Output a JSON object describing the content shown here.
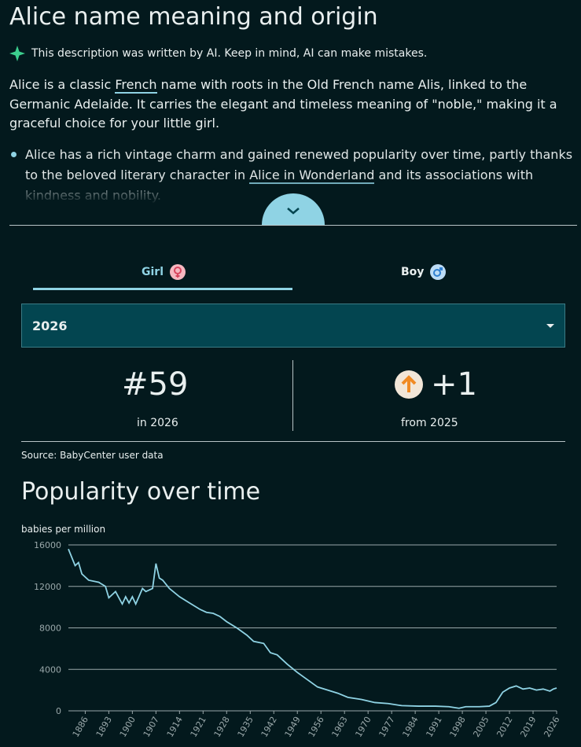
{
  "header": {
    "title": "Alice name meaning and origin",
    "ai_note": "This description was written by AI. Keep in mind, AI can make mistakes."
  },
  "description": {
    "parts": [
      "Alice is a classic ",
      "French",
      " name with roots in the Old French name Alis, linked to the Germanic Adelaide. It carries the elegant and timeless meaning of \"noble,\" making it a graceful choice for your little girl."
    ]
  },
  "bullets": [
    {
      "parts": [
        "Alice has a rich vintage charm and gained renewed popularity over time, partly thanks to the beloved literary character in ",
        "Alice in Wonderland",
        " and its associations with kindness and nobility."
      ]
    }
  ],
  "tabs": [
    "Girl",
    "Boy"
  ],
  "select": {
    "value": "2026"
  },
  "stats": {
    "rank": "#59",
    "rank_label": "in 2026",
    "change": "+1",
    "change_label": "from 2025"
  },
  "source": "Source: BabyCenter user data",
  "section_title": "Popularity over time",
  "chart_data": {
    "type": "line",
    "ylabel": "babies per million",
    "color": "#8fd3e4",
    "x": [
      1881,
      1883,
      1884,
      1885,
      1887,
      1890,
      1892,
      1893,
      1895,
      1897,
      1898,
      1899,
      1900,
      1901,
      1903,
      1904,
      1906,
      1907,
      1908,
      1909,
      1911,
      1914,
      1917,
      1920,
      1922,
      1924,
      1926,
      1928,
      1931,
      1934,
      1936,
      1939,
      1941,
      1943,
      1946,
      1949,
      1952,
      1955,
      1958,
      1961,
      1964,
      1968,
      1972,
      1976,
      1980,
      1985,
      1990,
      1994,
      1997,
      1999,
      2003,
      2006,
      2008,
      2010,
      2012,
      2014,
      2016,
      2018,
      2020,
      2022,
      2024,
      2025,
      2026
    ],
    "series": [
      {
        "name": "Girl",
        "values": [
          15600,
          14000,
          14300,
          13200,
          12600,
          12400,
          12000,
          10900,
          11500,
          10300,
          11000,
          10400,
          11000,
          10300,
          11800,
          11500,
          11800,
          14200,
          12800,
          12600,
          11800,
          11000,
          10400,
          9800,
          9500,
          9400,
          9100,
          8600,
          8000,
          7300,
          6700,
          6500,
          5600,
          5400,
          4500,
          3700,
          3000,
          2300,
          2000,
          1700,
          1300,
          1100,
          800,
          700,
          500,
          450,
          450,
          400,
          250,
          400,
          400,
          450,
          800,
          1800,
          2200,
          2400,
          2100,
          2200,
          2000,
          2100,
          1900,
          2100,
          2200
        ]
      }
    ],
    "xlim": [
      1881,
      2026
    ],
    "xticks": [
      1886,
      1893,
      1900,
      1907,
      1914,
      1921,
      1928,
      1935,
      1942,
      1949,
      1956,
      1963,
      1970,
      1977,
      1984,
      1991,
      1998,
      2005,
      2012,
      2019,
      2026
    ],
    "ylim": [
      0,
      16000
    ],
    "yticks": [
      0,
      4000,
      8000,
      12000,
      16000
    ],
    "grid": true
  }
}
